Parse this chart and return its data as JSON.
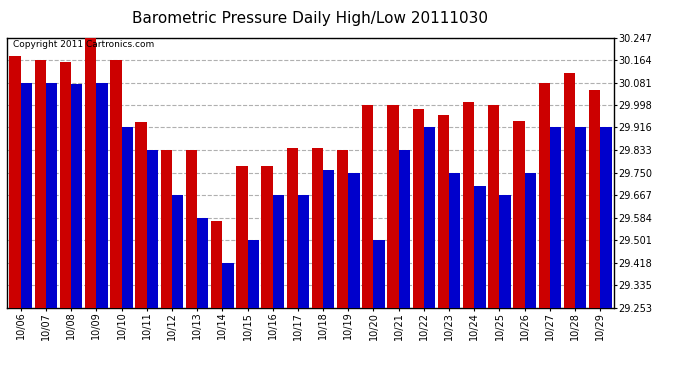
{
  "title": "Barometric Pressure Daily High/Low 20111030",
  "copyright": "Copyright 2011 Cartronics.com",
  "dates": [
    "10/06",
    "10/07",
    "10/08",
    "10/09",
    "10/10",
    "10/11",
    "10/12",
    "10/13",
    "10/14",
    "10/15",
    "10/16",
    "10/17",
    "10/18",
    "10/19",
    "10/20",
    "10/21",
    "10/22",
    "10/23",
    "10/24",
    "10/25",
    "10/26",
    "10/27",
    "10/28",
    "10/29"
  ],
  "highs": [
    30.18,
    30.164,
    30.155,
    30.247,
    30.164,
    29.936,
    29.833,
    29.833,
    29.57,
    29.775,
    29.775,
    29.84,
    29.84,
    29.833,
    29.998,
    29.998,
    29.984,
    29.96,
    30.01,
    29.998,
    29.94,
    30.081,
    30.115,
    30.052
  ],
  "lows": [
    30.081,
    30.081,
    30.075,
    30.081,
    29.916,
    29.833,
    29.667,
    29.584,
    29.418,
    29.501,
    29.667,
    29.667,
    29.76,
    29.75,
    29.501,
    29.833,
    29.916,
    29.75,
    29.7,
    29.667,
    29.75,
    29.916,
    29.916,
    29.916
  ],
  "ymin": 29.253,
  "ymax": 30.247,
  "yticks": [
    29.253,
    29.335,
    29.418,
    29.501,
    29.584,
    29.667,
    29.75,
    29.833,
    29.916,
    29.998,
    30.081,
    30.164,
    30.247
  ],
  "bar_width": 0.45,
  "high_color": "#cc0000",
  "low_color": "#0000cc",
  "bg_color": "#ffffff",
  "grid_color": "#b0b0b0",
  "title_fontsize": 11
}
